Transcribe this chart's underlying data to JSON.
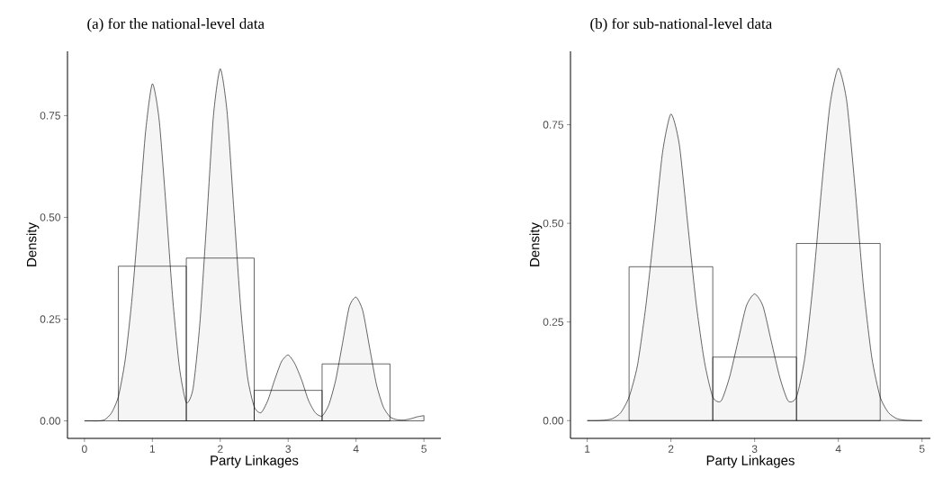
{
  "chart_data": [
    {
      "type": "histogram",
      "title": "(a) for the national-level data",
      "xlabel": "Party Linkages",
      "ylabel": "Density",
      "xlim": [
        -0.25,
        5.25
      ],
      "ylim": [
        -0.043,
        0.908
      ],
      "xticks": [
        0,
        1,
        2,
        3,
        4,
        5
      ],
      "yticks": [
        {
          "value": 0,
          "label": "0.00"
        },
        {
          "value": 0.25,
          "label": "0.25"
        },
        {
          "value": 0.5,
          "label": "0.50"
        },
        {
          "value": 0.75,
          "label": "0.75"
        }
      ],
      "series": [
        {
          "type": "area",
          "color": "#f5f5f5",
          "x": [
            0,
            0.1,
            0.2,
            0.3,
            0.4,
            0.5,
            0.6,
            0.7,
            0.8,
            0.9,
            1.0,
            1.1,
            1.2,
            1.3,
            1.4,
            1.5,
            1.6,
            1.7,
            1.8,
            1.9,
            2.0,
            2.1,
            2.2,
            2.3,
            2.4,
            2.5,
            2.6,
            2.7,
            2.8,
            2.9,
            3.0,
            3.1,
            3.2,
            3.3,
            3.4,
            3.5,
            3.6,
            3.7,
            3.8,
            3.9,
            4.0,
            4.1,
            4.2,
            4.3,
            4.4,
            4.5,
            4.6,
            4.7,
            4.8,
            4.9,
            5.0
          ],
          "values": [
            0,
            0,
            0,
            0.003,
            0.02,
            0.06,
            0.15,
            0.3,
            0.5,
            0.71,
            0.828,
            0.74,
            0.53,
            0.3,
            0.13,
            0.045,
            0.08,
            0.24,
            0.49,
            0.75,
            0.865,
            0.76,
            0.52,
            0.28,
            0.11,
            0.035,
            0.02,
            0.05,
            0.1,
            0.145,
            0.162,
            0.14,
            0.1,
            0.05,
            0.02,
            0.012,
            0.04,
            0.1,
            0.19,
            0.28,
            0.304,
            0.27,
            0.18,
            0.09,
            0.035,
            0.01,
            0.003,
            0.002,
            0.005,
            0.01,
            0.013
          ]
        },
        {
          "color": "#000000",
          "bins": [
            0.5,
            1.5,
            2.5,
            3.5,
            4.5
          ],
          "values": [
            0.38,
            0.4,
            0.075,
            0.14
          ]
        }
      ]
    },
    {
      "type": "histogram",
      "title": "(b) for sub-national-level data",
      "xlabel": "Party Linkages",
      "ylabel": "Density",
      "xlim": [
        0.8,
        5.1
      ],
      "ylim": [
        -0.045,
        0.936
      ],
      "xticks": [
        1,
        2,
        3,
        4,
        5
      ],
      "yticks": [
        {
          "value": 0,
          "label": "0.00"
        },
        {
          "value": 0.25,
          "label": "0.25"
        },
        {
          "value": 0.5,
          "label": "0.50"
        },
        {
          "value": 0.75,
          "label": "0.75"
        }
      ],
      "series": [
        {
          "type": "area",
          "color": "#f5f5f5",
          "x": [
            1.0,
            1.1,
            1.2,
            1.3,
            1.4,
            1.5,
            1.6,
            1.7,
            1.8,
            1.9,
            2.0,
            2.1,
            2.2,
            2.3,
            2.4,
            2.5,
            2.6,
            2.7,
            2.8,
            2.9,
            3.0,
            3.1,
            3.2,
            3.3,
            3.4,
            3.5,
            3.6,
            3.7,
            3.8,
            3.9,
            4.0,
            4.1,
            4.2,
            4.3,
            4.4,
            4.5,
            4.6,
            4.7,
            4.8,
            4.9,
            5.0
          ],
          "values": [
            0,
            0,
            0.001,
            0.005,
            0.02,
            0.06,
            0.14,
            0.29,
            0.48,
            0.68,
            0.777,
            0.7,
            0.5,
            0.3,
            0.15,
            0.06,
            0.05,
            0.11,
            0.2,
            0.29,
            0.321,
            0.29,
            0.2,
            0.11,
            0.05,
            0.06,
            0.16,
            0.35,
            0.59,
            0.8,
            0.893,
            0.81,
            0.59,
            0.34,
            0.16,
            0.06,
            0.02,
            0.005,
            0.001,
            0,
            0
          ]
        },
        {
          "color": "#000000",
          "bins": [
            1.5,
            2.5,
            3.5,
            4.5
          ],
          "values": [
            0.39,
            0.161,
            0.449
          ]
        }
      ]
    }
  ]
}
